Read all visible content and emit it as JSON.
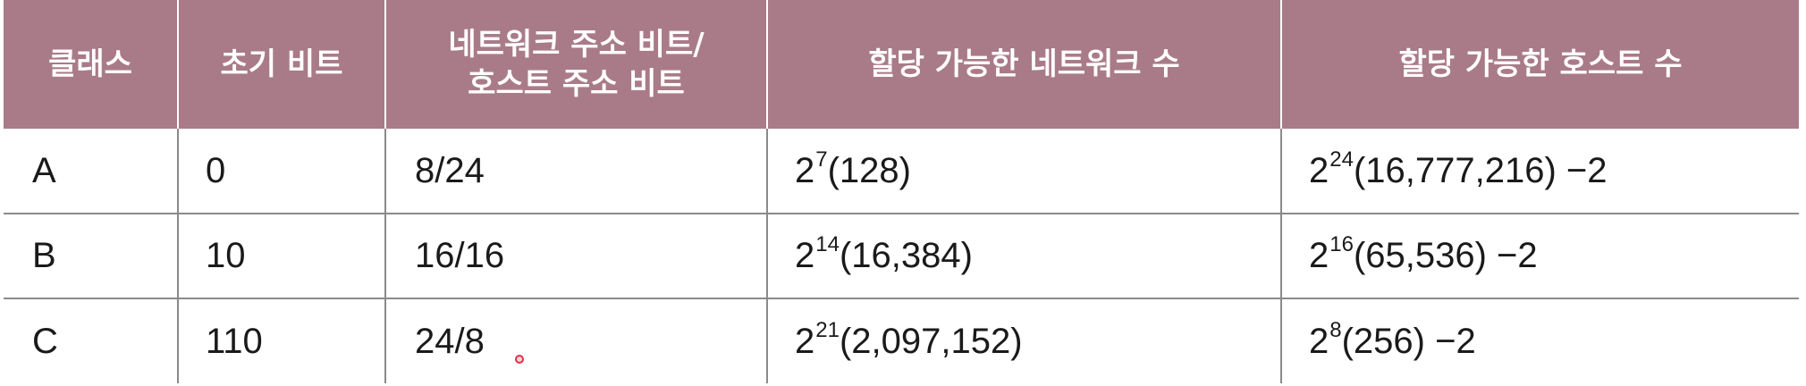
{
  "table": {
    "headers": [
      [
        "클래스"
      ],
      [
        "초기 비트"
      ],
      [
        "네트워크 주소 비트/",
        "호스트 주소 비트"
      ],
      [
        "할당 가능한 네트워크 수"
      ],
      [
        "할당 가능한 호스트 수"
      ]
    ],
    "rows": [
      {
        "class": "A",
        "initial_bits": "0",
        "net_host_bits": "8/24",
        "networks": {
          "base": "2",
          "exp": "7",
          "value": "(128)"
        },
        "hosts": {
          "base": "2",
          "exp": "24",
          "value": "(16,777,216) −2"
        }
      },
      {
        "class": "B",
        "initial_bits": "10",
        "net_host_bits": "16/16",
        "networks": {
          "base": "2",
          "exp": "14",
          "value": "(16,384)"
        },
        "hosts": {
          "base": "2",
          "exp": "16",
          "value": "(65,536) −2"
        }
      },
      {
        "class": "C",
        "initial_bits": "110",
        "net_host_bits": "24/8",
        "networks": {
          "base": "2",
          "exp": "21",
          "value": "(2,097,152)"
        },
        "hosts": {
          "base": "2",
          "exp": "8",
          "value": "(256) −2"
        }
      }
    ]
  },
  "colors": {
    "header_bg": "#a97b89",
    "header_text": "#ffffff",
    "grid_line": "#8a8a8a",
    "cursor": "#e0304a"
  }
}
